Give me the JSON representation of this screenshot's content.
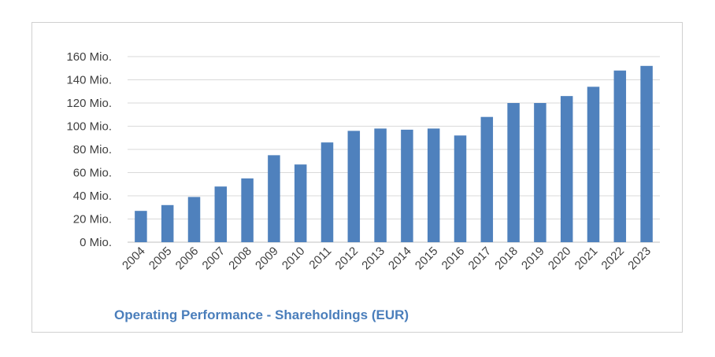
{
  "chart_data": {
    "type": "bar",
    "title": "Operating Performance - Shareholdings (EUR)",
    "xlabel": "",
    "ylabel": "",
    "categories": [
      "2004",
      "2005",
      "2006",
      "2007",
      "2008",
      "2009",
      "2010",
      "2011",
      "2012",
      "2013",
      "2014",
      "2015",
      "2016",
      "2017",
      "2018",
      "2019",
      "2020",
      "2021",
      "2022",
      "2023"
    ],
    "values": [
      27,
      32,
      39,
      48,
      55,
      75,
      67,
      86,
      96,
      98,
      97,
      98,
      92,
      108,
      120,
      120,
      126,
      134,
      148,
      152
    ],
    "ylim": [
      0,
      160
    ],
    "yticks": [
      0,
      20,
      40,
      60,
      80,
      100,
      120,
      140,
      160
    ],
    "ytick_labels": [
      "0 Mio.",
      "20 Mio.",
      "40 Mio.",
      "60 Mio.",
      "80 Mio.",
      "100 Mio.",
      "120 Mio.",
      "140 Mio.",
      "160 Mio."
    ],
    "bar_color": "#4f81bd",
    "grid": true,
    "legend": "none"
  }
}
